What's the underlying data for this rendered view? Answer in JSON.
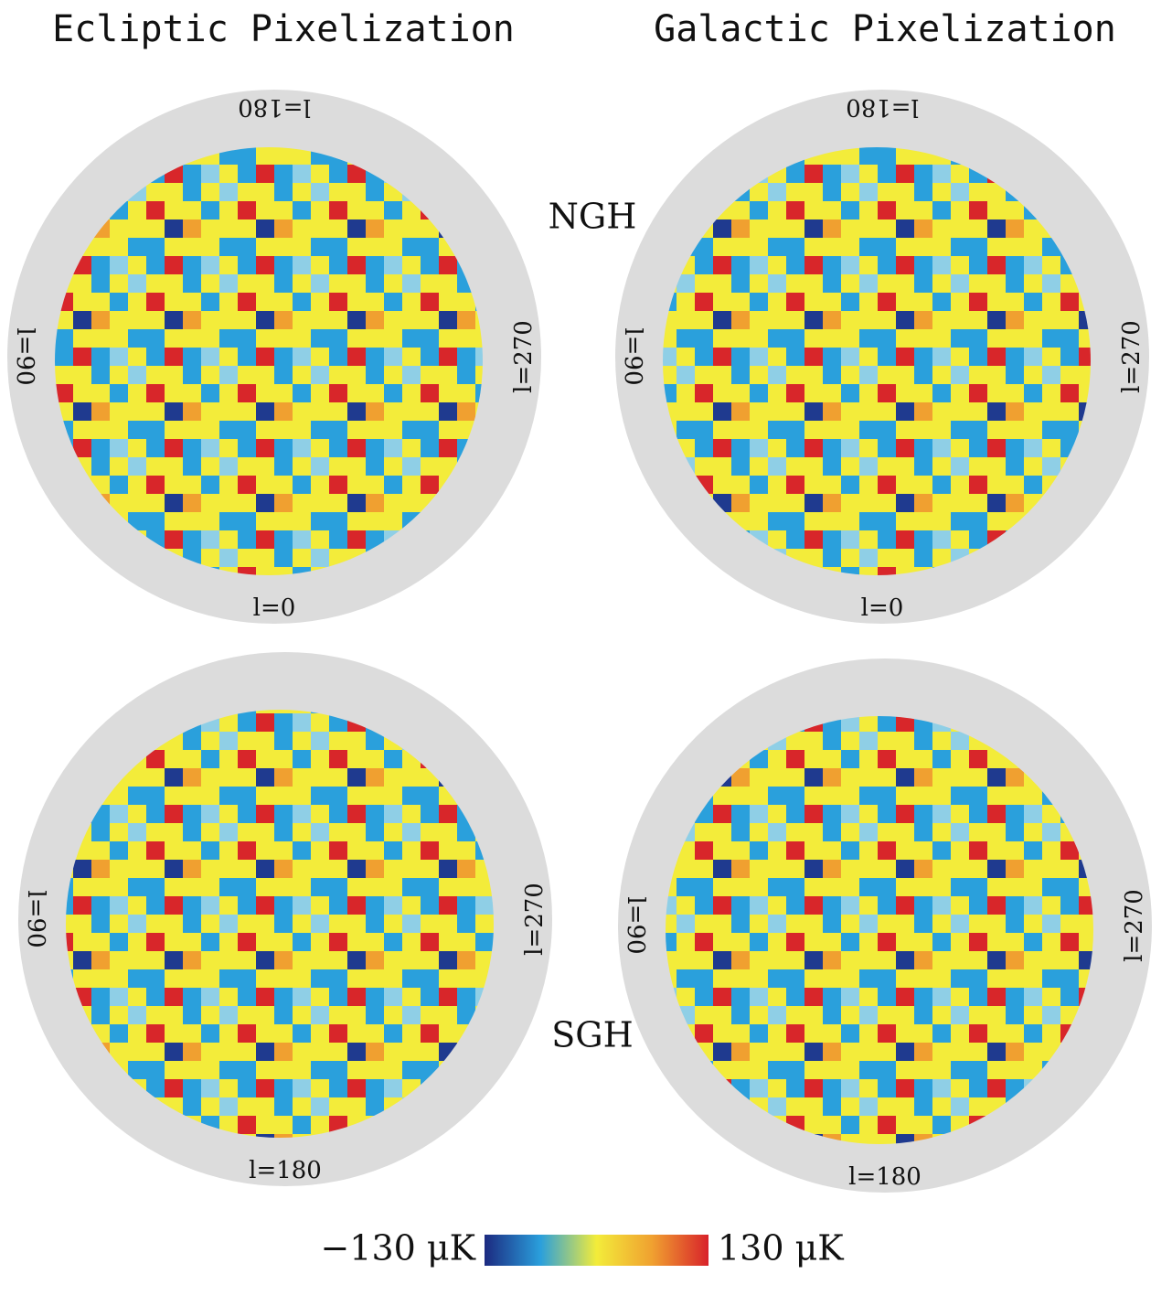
{
  "titles": [
    "Ecliptic Pixelization",
    "Galactic Pixelization"
  ],
  "hemispheres": [
    "NGH",
    "SGH"
  ],
  "panels": [
    {
      "top": "l=180",
      "bottom": "l=0",
      "left": "l=90",
      "right": "l=270"
    },
    {
      "top": "l=180",
      "bottom": "l=0",
      "left": "l=90",
      "right": "l=270"
    },
    {
      "bottom": "l=180",
      "left": "l=90",
      "right": "l=270"
    },
    {
      "bottom": "l=180",
      "left": "l=90",
      "right": "l=270"
    }
  ],
  "colorbar": {
    "colors": [
      "#1c2a80",
      "#2a9fdc",
      "#f3ec3a",
      "#f0a030",
      "#d8222a"
    ],
    "ticks": [
      {
        "value": -130,
        "label": "−130 μK"
      },
      {
        "value": 130,
        "label": "130 μK"
      }
    ]
  }
}
